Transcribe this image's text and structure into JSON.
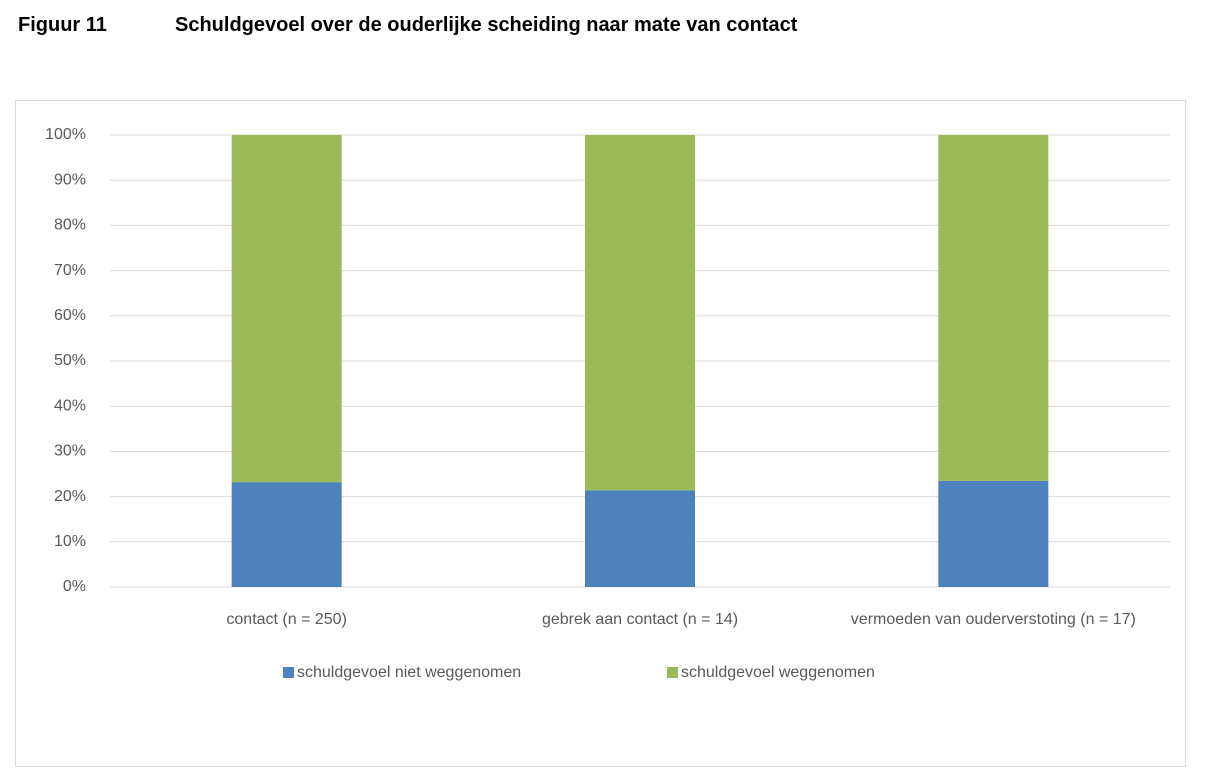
{
  "chart_data": {
    "type": "stacked_bar",
    "figure_label": "Figuur 11",
    "title": "Schuldgevoel over de ouderlijke scheiding naar mate van contact",
    "categories": [
      "contact (n = 250)",
      "gebrek aan contact (n = 14)",
      "vermoeden van ouderverstoting (n = 17)"
    ],
    "series": [
      {
        "name": "schuldgevoel niet weggenomen",
        "color": "#4f81bd",
        "values": [
          23.2,
          21.4,
          23.5
        ]
      },
      {
        "name": "schuldgevoel weggenomen",
        "color": "#9bbb59",
        "values": [
          76.8,
          78.6,
          76.5
        ]
      }
    ],
    "ylim": [
      0,
      100
    ],
    "yticks": [
      {
        "value": 0,
        "label": "0%"
      },
      {
        "value": 10,
        "label": "10%"
      },
      {
        "value": 20,
        "label": "20%"
      },
      {
        "value": 30,
        "label": "30%"
      },
      {
        "value": 40,
        "label": "40%"
      },
      {
        "value": 50,
        "label": "50%"
      },
      {
        "value": 60,
        "label": "60%"
      },
      {
        "value": 70,
        "label": "70%"
      },
      {
        "value": 80,
        "label": "80%"
      },
      {
        "value": 90,
        "label": "90%"
      },
      {
        "value": 100,
        "label": "100%"
      }
    ],
    "grid": true,
    "legend": "bottom"
  }
}
